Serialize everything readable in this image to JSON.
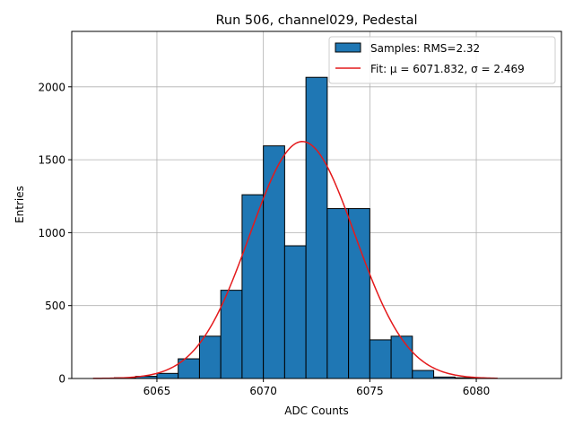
{
  "chart_data": {
    "type": "bar",
    "title": "Run 506, channel029, Pedestal",
    "xlabel": "ADC Counts",
    "ylabel": "Entries",
    "xlim": [
      6061.0,
      6084.0
    ],
    "ylim": [
      0,
      2380
    ],
    "xticks": [
      6065,
      6070,
      6075,
      6080
    ],
    "yticks": [
      0,
      500,
      1000,
      1500,
      2000
    ],
    "grid": true,
    "legend_position": "top-right",
    "bin_width": 1,
    "bins": [
      {
        "x": 6063,
        "value": 5
      },
      {
        "x": 6064,
        "value": 15
      },
      {
        "x": 6065,
        "value": 35
      },
      {
        "x": 6066,
        "value": 135
      },
      {
        "x": 6067,
        "value": 290
      },
      {
        "x": 6068,
        "value": 605
      },
      {
        "x": 6069,
        "value": 1260
      },
      {
        "x": 6070,
        "value": 1595
      },
      {
        "x": 6071,
        "value": 910
      },
      {
        "x": 6072,
        "value": 2065
      },
      {
        "x": 6073,
        "value": 1165
      },
      {
        "x": 6074,
        "value": 1165
      },
      {
        "x": 6075,
        "value": 265
      },
      {
        "x": 6076,
        "value": 290
      },
      {
        "x": 6077,
        "value": 55
      },
      {
        "x": 6078,
        "value": 10
      },
      {
        "x": 6079,
        "value": 5
      }
    ],
    "fit": {
      "mu": 6071.832,
      "sigma": 2.469,
      "x_range": [
        6062,
        6081
      ],
      "amplitude": 1625
    },
    "legend": [
      {
        "label": "Samples: RMS=2.32",
        "kind": "patch",
        "color": "#1f77b4"
      },
      {
        "label": "Fit: μ = 6071.832, σ = 2.469",
        "kind": "line",
        "color": "#e41a1c"
      }
    ],
    "colors": {
      "bar_fill": "#1f77b4",
      "bar_edge": "#000000",
      "fit_line": "#e41a1c",
      "grid": "#b0b0b0"
    }
  }
}
